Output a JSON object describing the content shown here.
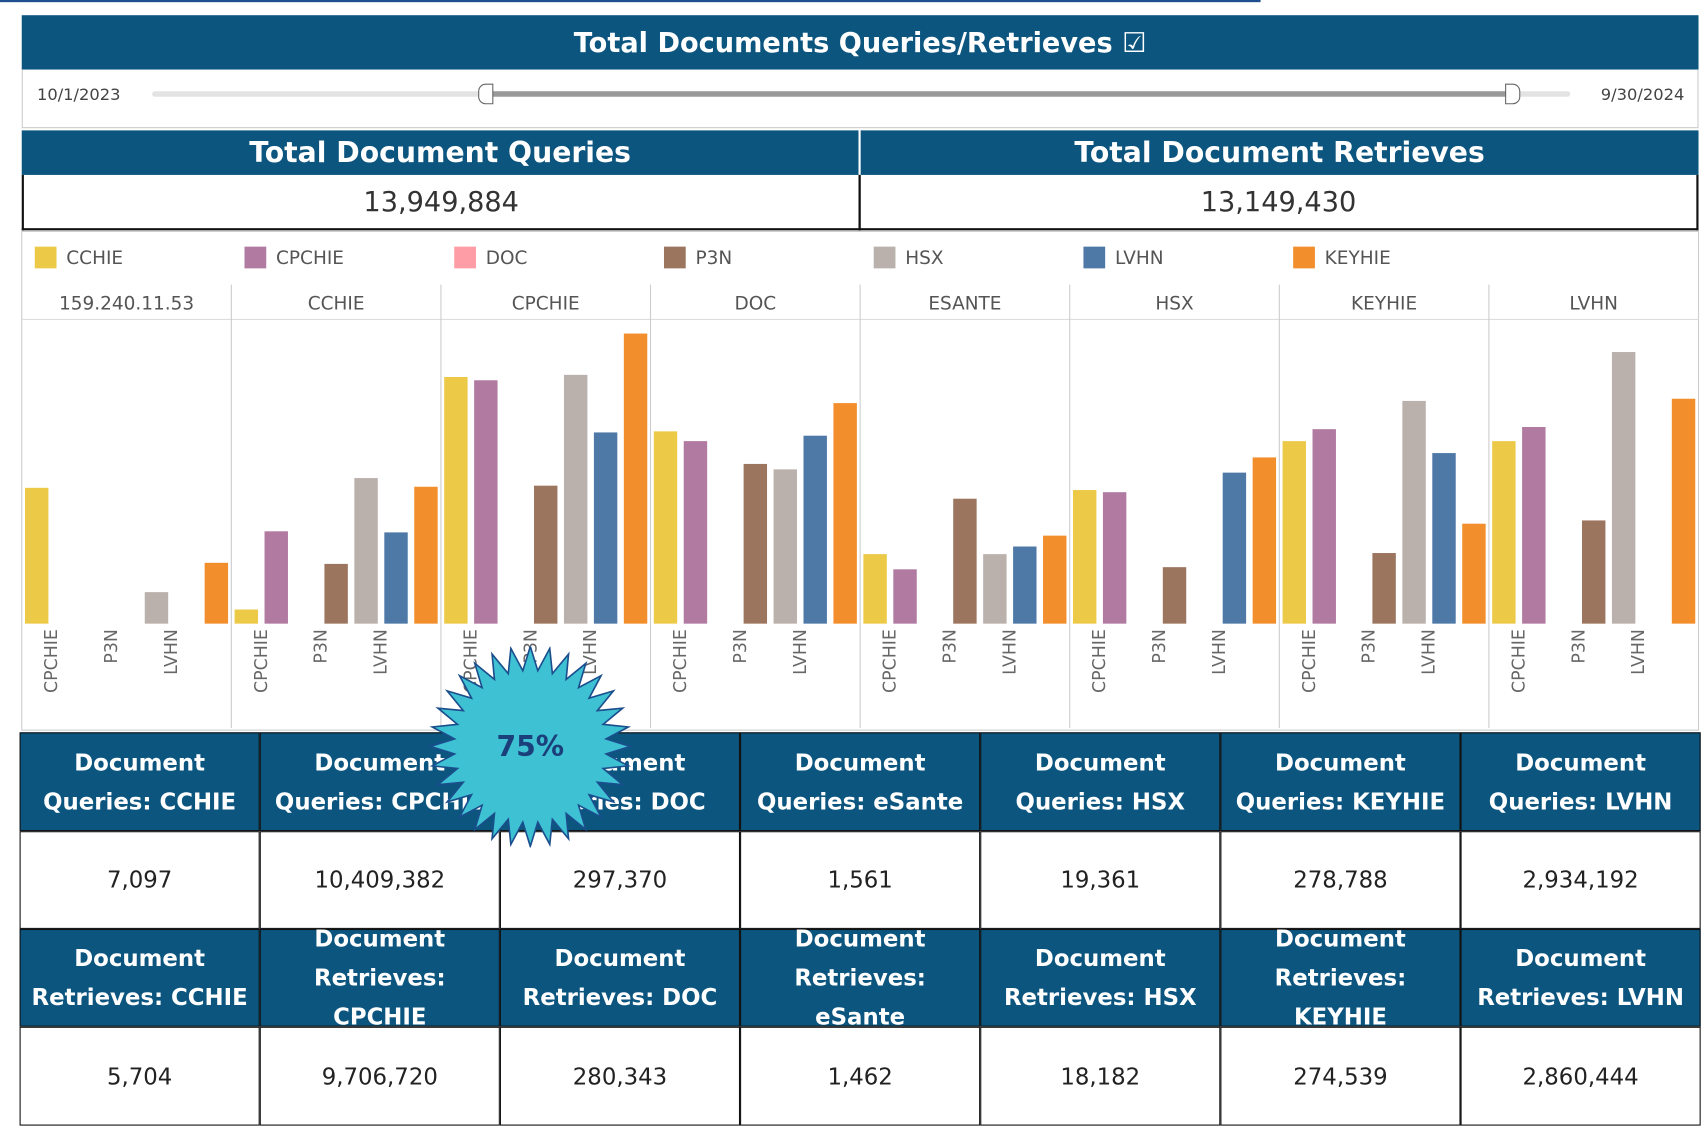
{
  "header": {
    "title": "Total Documents Queries/Retrieves ☑"
  },
  "slider": {
    "start": "10/1/2023",
    "end": "9/30/2024"
  },
  "totals": [
    {
      "label": "Total Document Queries",
      "value": "13,949,884"
    },
    {
      "label": "Total Document Retrieves",
      "value": "13,149,430"
    }
  ],
  "badge": "75%",
  "chart_data": {
    "type": "bar",
    "panels": [
      "159.240.11.53",
      "CCHIE",
      "CPCHIE",
      "DOC",
      "ESANTE",
      "HSX",
      "KEYHIE",
      "LVHN"
    ],
    "x_labels": [
      null,
      "CPCHIE",
      null,
      "P3N",
      null,
      "LVHN",
      null
    ],
    "ylim": [
      0,
      280
    ],
    "legend": "top",
    "series": [
      {
        "name": "CCHIE",
        "color": "#edc948",
        "values": [
          125,
          13,
          227,
          177,
          64,
          123,
          168,
          168
        ]
      },
      {
        "name": "CPCHIE",
        "color": "#b07aa1",
        "values": [
          null,
          85,
          224,
          168,
          50,
          121,
          179,
          181
        ]
      },
      {
        "name": "DOC",
        "color": "#ff9da7",
        "values": [
          null,
          null,
          null,
          null,
          null,
          null,
          null,
          null
        ]
      },
      {
        "name": "P3N",
        "color": "#9c755f",
        "values": [
          null,
          55,
          127,
          147,
          115,
          52,
          65,
          95
        ]
      },
      {
        "name": "HSX",
        "color": "#bab0ac",
        "values": [
          29,
          134,
          229,
          142,
          64,
          null,
          205,
          250
        ]
      },
      {
        "name": "LVHN",
        "color": "#4e79a7",
        "values": [
          null,
          84,
          176,
          173,
          71,
          139,
          157,
          null
        ]
      },
      {
        "name": "KEYHIE",
        "color": "#f28e2b",
        "values": [
          56,
          126,
          267,
          203,
          81,
          153,
          92,
          207
        ]
      }
    ]
  },
  "table": {
    "rows": [
      [
        "Document Queries: CCHIE",
        "Document Queries: CPCHIE",
        "Document Queries: DOC",
        "Document Queries: eSante",
        "Document Queries: HSX",
        "Document Queries: KEYHIE",
        "Document Queries: LVHN"
      ],
      [
        "7,097",
        "10,409,382",
        "297,370",
        "1,561",
        "19,361",
        "278,788",
        "2,934,192"
      ],
      [
        "Document Retrieves: CCHIE",
        "Document Retrieves: CPCHIE",
        "Document Retrieves: DOC",
        "Document Retrieves: eSante",
        "Document Retrieves: HSX",
        "Document Retrieves: KEYHIE",
        "Document Retrieves: LVHN"
      ],
      [
        "5,704",
        "9,706,720",
        "280,343",
        "1,462",
        "18,182",
        "274,539",
        "2,860,444"
      ]
    ]
  }
}
